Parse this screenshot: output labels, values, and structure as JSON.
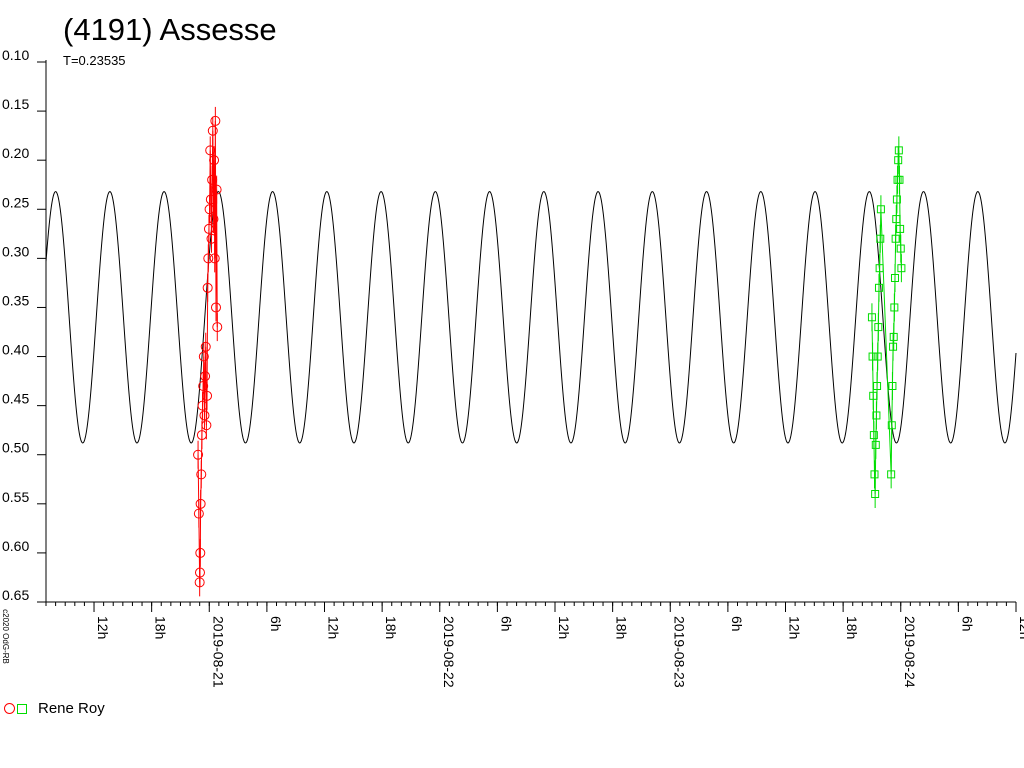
{
  "chart_data": {
    "type": "scatter",
    "title": "(4191) Assesse",
    "subtitle": "T=0.23535",
    "copyright": "c2020 OdG-RB",
    "xlabel": "",
    "ylabel": "",
    "x_axis_type": "date",
    "xlim": [
      "2019-08-20T07:00",
      "2019-08-24T12:00"
    ],
    "ylim": [
      0.1,
      0.65
    ],
    "y_inverted": true,
    "y_ticks": [
      0.1,
      0.15,
      0.2,
      0.25,
      0.3,
      0.35,
      0.4,
      0.45,
      0.5,
      0.55,
      0.6,
      0.65
    ],
    "y_tick_labels": [
      "0.10",
      "0.15",
      "0.20",
      "0.25",
      "0.30",
      "0.35",
      "0.40",
      "0.45",
      "0.50",
      "0.55",
      "0.60",
      "0.65"
    ],
    "x_tick_labels": [
      {
        "t": "2019-08-20T12:00",
        "label": "12h"
      },
      {
        "t": "2019-08-20T18:00",
        "label": "18h"
      },
      {
        "t": "2019-08-21T00:00",
        "label": "2019-08-21"
      },
      {
        "t": "2019-08-21T06:00",
        "label": "6h"
      },
      {
        "t": "2019-08-21T12:00",
        "label": "12h"
      },
      {
        "t": "2019-08-21T18:00",
        "label": "18h"
      },
      {
        "t": "2019-08-22T00:00",
        "label": "2019-08-22"
      },
      {
        "t": "2019-08-22T06:00",
        "label": "6h"
      },
      {
        "t": "2019-08-22T12:00",
        "label": "12h"
      },
      {
        "t": "2019-08-22T18:00",
        "label": "18h"
      },
      {
        "t": "2019-08-23T00:00",
        "label": "2019-08-23"
      },
      {
        "t": "2019-08-23T06:00",
        "label": "6h"
      },
      {
        "t": "2019-08-23T12:00",
        "label": "12h"
      },
      {
        "t": "2019-08-23T18:00",
        "label": "18h"
      },
      {
        "t": "2019-08-24T00:00",
        "label": "2019-08-24"
      },
      {
        "t": "2019-08-24T06:00",
        "label": "6h"
      },
      {
        "t": "2019-08-24T12:00",
        "label": "12h"
      }
    ],
    "model": {
      "period_days": 0.23535,
      "mean": 0.36,
      "amplitude": 0.128,
      "peak_time": "2019-08-20T08:00"
    },
    "legend": {
      "placement": "bottom-left",
      "label": "Rene Roy"
    },
    "series": [
      {
        "name": "Rene Roy",
        "marker": "circle",
        "color": "#ff0000",
        "points": [
          {
            "t": "2019-08-20T22:50",
            "y": 0.5
          },
          {
            "t": "2019-08-20T22:55",
            "y": 0.56
          },
          {
            "t": "2019-08-20T23:00",
            "y": 0.63
          },
          {
            "t": "2019-08-20T23:02",
            "y": 0.62
          },
          {
            "t": "2019-08-20T23:04",
            "y": 0.6
          },
          {
            "t": "2019-08-20T23:06",
            "y": 0.55
          },
          {
            "t": "2019-08-20T23:10",
            "y": 0.52
          },
          {
            "t": "2019-08-20T23:14",
            "y": 0.48
          },
          {
            "t": "2019-08-20T23:18",
            "y": 0.45
          },
          {
            "t": "2019-08-20T23:22",
            "y": 0.43
          },
          {
            "t": "2019-08-20T23:26",
            "y": 0.4
          },
          {
            "t": "2019-08-20T23:30",
            "y": 0.46
          },
          {
            "t": "2019-08-20T23:34",
            "y": 0.42
          },
          {
            "t": "2019-08-20T23:38",
            "y": 0.39
          },
          {
            "t": "2019-08-20T23:42",
            "y": 0.47
          },
          {
            "t": "2019-08-20T23:46",
            "y": 0.44
          },
          {
            "t": "2019-08-20T23:50",
            "y": 0.33
          },
          {
            "t": "2019-08-20T23:54",
            "y": 0.3
          },
          {
            "t": "2019-08-20T23:58",
            "y": 0.27
          },
          {
            "t": "2019-08-21T00:02",
            "y": 0.25
          },
          {
            "t": "2019-08-21T00:06",
            "y": 0.19
          },
          {
            "t": "2019-08-21T00:10",
            "y": 0.24
          },
          {
            "t": "2019-08-21T00:14",
            "y": 0.28
          },
          {
            "t": "2019-08-21T00:18",
            "y": 0.22
          },
          {
            "t": "2019-08-21T00:22",
            "y": 0.17
          },
          {
            "t": "2019-08-21T00:26",
            "y": 0.26
          },
          {
            "t": "2019-08-21T00:30",
            "y": 0.2
          },
          {
            "t": "2019-08-21T00:34",
            "y": 0.3
          },
          {
            "t": "2019-08-21T00:38",
            "y": 0.16
          },
          {
            "t": "2019-08-21T00:42",
            "y": 0.35
          },
          {
            "t": "2019-08-21T00:46",
            "y": 0.23
          },
          {
            "t": "2019-08-21T00:50",
            "y": 0.37
          }
        ]
      },
      {
        "name": "Rene Roy",
        "marker": "square",
        "color": "#00dd00",
        "points": [
          {
            "t": "2019-08-23T21:00",
            "y": 0.36
          },
          {
            "t": "2019-08-23T21:04",
            "y": 0.4
          },
          {
            "t": "2019-08-23T21:08",
            "y": 0.44
          },
          {
            "t": "2019-08-23T21:12",
            "y": 0.48
          },
          {
            "t": "2019-08-23T21:16",
            "y": 0.52
          },
          {
            "t": "2019-08-23T21:20",
            "y": 0.54
          },
          {
            "t": "2019-08-23T21:24",
            "y": 0.49
          },
          {
            "t": "2019-08-23T21:28",
            "y": 0.46
          },
          {
            "t": "2019-08-23T21:32",
            "y": 0.43
          },
          {
            "t": "2019-08-23T21:36",
            "y": 0.4
          },
          {
            "t": "2019-08-23T21:40",
            "y": 0.37
          },
          {
            "t": "2019-08-23T21:44",
            "y": 0.33
          },
          {
            "t": "2019-08-23T21:48",
            "y": 0.31
          },
          {
            "t": "2019-08-23T21:52",
            "y": 0.28
          },
          {
            "t": "2019-08-23T21:56",
            "y": 0.25
          },
          {
            "t": "2019-08-23T23:00",
            "y": 0.52
          },
          {
            "t": "2019-08-23T23:04",
            "y": 0.47
          },
          {
            "t": "2019-08-23T23:08",
            "y": 0.43
          },
          {
            "t": "2019-08-23T23:12",
            "y": 0.39
          },
          {
            "t": "2019-08-23T23:16",
            "y": 0.38
          },
          {
            "t": "2019-08-23T23:20",
            "y": 0.35
          },
          {
            "t": "2019-08-23T23:24",
            "y": 0.32
          },
          {
            "t": "2019-08-23T23:28",
            "y": 0.28
          },
          {
            "t": "2019-08-23T23:32",
            "y": 0.26
          },
          {
            "t": "2019-08-23T23:36",
            "y": 0.24
          },
          {
            "t": "2019-08-23T23:40",
            "y": 0.22
          },
          {
            "t": "2019-08-23T23:44",
            "y": 0.2
          },
          {
            "t": "2019-08-23T23:48",
            "y": 0.19
          },
          {
            "t": "2019-08-23T23:52",
            "y": 0.22
          },
          {
            "t": "2019-08-23T23:56",
            "y": 0.27
          },
          {
            "t": "2019-08-24T00:00",
            "y": 0.29
          },
          {
            "t": "2019-08-24T00:04",
            "y": 0.31
          }
        ]
      }
    ]
  }
}
